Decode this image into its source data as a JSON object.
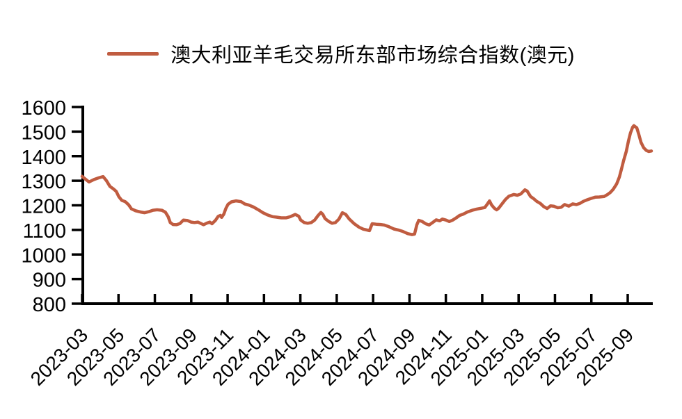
{
  "legend": {
    "label": "澳大利亚羊毛交易所东部市场综合指数(澳元)"
  },
  "chart_data": {
    "type": "line",
    "title": "",
    "xlabel": "",
    "ylabel": "",
    "grid": false,
    "legend_position": "top-center",
    "background_color": "#ffffff",
    "axis_color": "#000000",
    "ylim": [
      800,
      1600
    ],
    "y_ticks": [
      800,
      900,
      1000,
      1100,
      1200,
      1300,
      1400,
      1500,
      1600
    ],
    "x_tick_labels": [
      "2023-03",
      "2023-05",
      "2023-07",
      "2023-09",
      "2023-11",
      "2024-01",
      "2024-03",
      "2024-05",
      "2024-07",
      "2024-09",
      "2024-11",
      "2025-01",
      "2025-03",
      "2025-05",
      "2025-07",
      "2025-09"
    ],
    "x_tick_positions_months": [
      0,
      2,
      4,
      6,
      8,
      10,
      12,
      14,
      16,
      18,
      20,
      22,
      24,
      26,
      28,
      30
    ],
    "xlim_months": [
      0,
      31.3
    ],
    "x_unit": "months since 2023-03 (ticks every 2 months), data approximately weekly",
    "series": [
      {
        "name": "澳大利亚羊毛交易所东部市场综合指数(澳元)",
        "color": "#C05C40",
        "points": [
          [
            0.0,
            1318
          ],
          [
            0.19,
            1306
          ],
          [
            0.38,
            1295
          ],
          [
            0.65,
            1305
          ],
          [
            0.92,
            1312
          ],
          [
            1.15,
            1317
          ],
          [
            1.34,
            1300
          ],
          [
            1.53,
            1277
          ],
          [
            1.72,
            1267
          ],
          [
            1.87,
            1257
          ],
          [
            2.02,
            1235
          ],
          [
            2.18,
            1220
          ],
          [
            2.37,
            1215
          ],
          [
            2.56,
            1202
          ],
          [
            2.71,
            1186
          ],
          [
            2.94,
            1178
          ],
          [
            3.21,
            1173
          ],
          [
            3.44,
            1170
          ],
          [
            3.66,
            1174
          ],
          [
            3.89,
            1180
          ],
          [
            4.12,
            1182
          ],
          [
            4.39,
            1180
          ],
          [
            4.58,
            1172
          ],
          [
            4.73,
            1154
          ],
          [
            4.85,
            1130
          ],
          [
            5.0,
            1122
          ],
          [
            5.19,
            1121
          ],
          [
            5.38,
            1126
          ],
          [
            5.57,
            1140
          ],
          [
            5.8,
            1138
          ],
          [
            5.99,
            1132
          ],
          [
            6.18,
            1130
          ],
          [
            6.37,
            1132
          ],
          [
            6.56,
            1125
          ],
          [
            6.68,
            1121
          ],
          [
            6.87,
            1128
          ],
          [
            7.02,
            1132
          ],
          [
            7.14,
            1125
          ],
          [
            7.33,
            1139
          ],
          [
            7.48,
            1155
          ],
          [
            7.6,
            1159
          ],
          [
            7.67,
            1151
          ],
          [
            7.79,
            1164
          ],
          [
            7.9,
            1187
          ],
          [
            8.02,
            1204
          ],
          [
            8.21,
            1214
          ],
          [
            8.47,
            1218
          ],
          [
            8.74,
            1215
          ],
          [
            8.93,
            1206
          ],
          [
            9.16,
            1201
          ],
          [
            9.43,
            1193
          ],
          [
            9.69,
            1182
          ],
          [
            9.92,
            1171
          ],
          [
            10.19,
            1161
          ],
          [
            10.46,
            1154
          ],
          [
            10.69,
            1152
          ],
          [
            10.95,
            1149
          ],
          [
            11.22,
            1149
          ],
          [
            11.45,
            1154
          ],
          [
            11.72,
            1163
          ],
          [
            11.91,
            1156
          ],
          [
            12.02,
            1140
          ],
          [
            12.21,
            1130
          ],
          [
            12.4,
            1127
          ],
          [
            12.6,
            1130
          ],
          [
            12.79,
            1140
          ],
          [
            12.98,
            1159
          ],
          [
            13.13,
            1171
          ],
          [
            13.24,
            1163
          ],
          [
            13.36,
            1146
          ],
          [
            13.55,
            1135
          ],
          [
            13.74,
            1127
          ],
          [
            13.93,
            1130
          ],
          [
            14.12,
            1144
          ],
          [
            14.31,
            1170
          ],
          [
            14.5,
            1163
          ],
          [
            14.69,
            1144
          ],
          [
            14.96,
            1125
          ],
          [
            15.23,
            1111
          ],
          [
            15.46,
            1103
          ],
          [
            15.65,
            1100
          ],
          [
            15.8,
            1097
          ],
          [
            15.95,
            1125
          ],
          [
            16.18,
            1123
          ],
          [
            16.41,
            1122
          ],
          [
            16.6,
            1120
          ],
          [
            16.87,
            1113
          ],
          [
            17.14,
            1104
          ],
          [
            17.37,
            1100
          ],
          [
            17.63,
            1094
          ],
          [
            17.9,
            1085
          ],
          [
            18.13,
            1081
          ],
          [
            18.28,
            1083
          ],
          [
            18.4,
            1120
          ],
          [
            18.51,
            1139
          ],
          [
            18.7,
            1134
          ],
          [
            18.89,
            1125
          ],
          [
            19.08,
            1120
          ],
          [
            19.27,
            1130
          ],
          [
            19.47,
            1141
          ],
          [
            19.66,
            1137
          ],
          [
            19.81,
            1144
          ],
          [
            20.0,
            1140
          ],
          [
            20.19,
            1134
          ],
          [
            20.38,
            1140
          ],
          [
            20.57,
            1149
          ],
          [
            20.76,
            1159
          ],
          [
            20.95,
            1164
          ],
          [
            21.18,
            1173
          ],
          [
            21.45,
            1180
          ],
          [
            21.72,
            1185
          ],
          [
            21.95,
            1188
          ],
          [
            22.14,
            1191
          ],
          [
            22.29,
            1206
          ],
          [
            22.4,
            1218
          ],
          [
            22.52,
            1201
          ],
          [
            22.67,
            1188
          ],
          [
            22.79,
            1182
          ],
          [
            22.9,
            1188
          ],
          [
            23.09,
            1206
          ],
          [
            23.28,
            1224
          ],
          [
            23.47,
            1237
          ],
          [
            23.74,
            1244
          ],
          [
            23.93,
            1241
          ],
          [
            24.12,
            1246
          ],
          [
            24.35,
            1263
          ],
          [
            24.47,
            1258
          ],
          [
            24.66,
            1236
          ],
          [
            24.81,
            1228
          ],
          [
            25.0,
            1216
          ],
          [
            25.19,
            1208
          ],
          [
            25.38,
            1195
          ],
          [
            25.57,
            1187
          ],
          [
            25.76,
            1198
          ],
          [
            25.95,
            1196
          ],
          [
            26.15,
            1190
          ],
          [
            26.34,
            1192
          ],
          [
            26.53,
            1203
          ],
          [
            26.76,
            1197
          ],
          [
            26.98,
            1206
          ],
          [
            27.18,
            1203
          ],
          [
            27.37,
            1208
          ],
          [
            27.56,
            1216
          ],
          [
            27.79,
            1223
          ],
          [
            27.98,
            1228
          ],
          [
            28.21,
            1233
          ],
          [
            28.44,
            1234
          ],
          [
            28.7,
            1236
          ],
          [
            28.89,
            1244
          ],
          [
            29.05,
            1253
          ],
          [
            29.2,
            1265
          ],
          [
            29.39,
            1287
          ],
          [
            29.54,
            1315
          ],
          [
            29.66,
            1348
          ],
          [
            29.77,
            1381
          ],
          [
            29.92,
            1419
          ],
          [
            30.04,
            1461
          ],
          [
            30.15,
            1494
          ],
          [
            30.27,
            1518
          ],
          [
            30.34,
            1524
          ],
          [
            30.5,
            1515
          ],
          [
            30.61,
            1489
          ],
          [
            30.73,
            1456
          ],
          [
            30.88,
            1434
          ],
          [
            31.03,
            1423
          ],
          [
            31.15,
            1419
          ],
          [
            31.3,
            1421
          ]
        ]
      }
    ]
  }
}
